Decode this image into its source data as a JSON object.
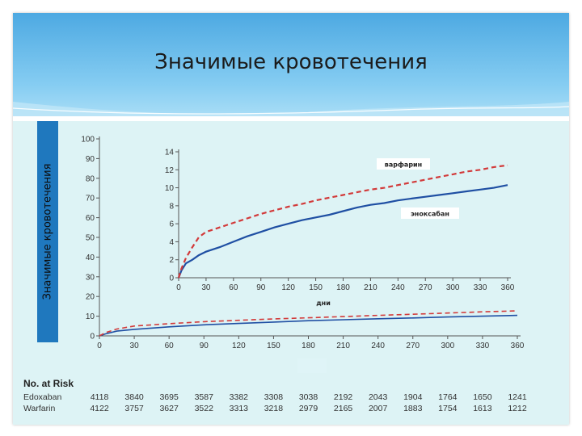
{
  "slide": {
    "title": "Значимые кровотечения",
    "y_axis_label": "Значимые кровотечения"
  },
  "colors": {
    "header_top": "#4da9e2",
    "header_bottom": "#a9ddf6",
    "panel": "#ddf3f5",
    "edoxaban_line": "#1f4fa3",
    "warfarin_line": "#d23a3a"
  },
  "chart_data": [
    {
      "type": "line",
      "role": "main",
      "x_ticks": [
        0,
        30,
        60,
        90,
        120,
        150,
        180,
        210,
        240,
        270,
        300,
        330,
        360
      ],
      "y_ticks": [
        0,
        10,
        20,
        30,
        40,
        50,
        60,
        70,
        80,
        90,
        100
      ],
      "xlim": [
        0,
        360
      ],
      "ylim": [
        0,
        100
      ],
      "ylabel": "Значимые кровотечения",
      "series": [
        {
          "style": "solid",
          "color": "#1f4fa3",
          "x": [
            0,
            5,
            15,
            30,
            60,
            90,
            120,
            150,
            180,
            210,
            240,
            270,
            300,
            330,
            360
          ],
          "y": [
            0,
            1.0,
            2.4,
            3.3,
            4.6,
            5.6,
            6.3,
            7.0,
            7.7,
            8.2,
            8.7,
            9.1,
            9.6,
            10.0,
            10.4
          ]
        },
        {
          "style": "dashed",
          "color": "#d23a3a",
          "x": [
            0,
            5,
            15,
            30,
            60,
            90,
            120,
            150,
            180,
            210,
            240,
            270,
            300,
            330,
            360
          ],
          "y": [
            0,
            1.6,
            3.5,
            5.0,
            6.2,
            7.2,
            7.9,
            8.6,
            9.2,
            9.8,
            10.4,
            11.0,
            11.6,
            12.2,
            12.7
          ]
        }
      ]
    },
    {
      "type": "line",
      "role": "inset",
      "x_ticks": [
        0,
        30,
        60,
        90,
        120,
        150,
        180,
        210,
        240,
        270,
        300,
        330,
        360
      ],
      "y_ticks": [
        0,
        2,
        4,
        6,
        8,
        10,
        12,
        14
      ],
      "xlim": [
        0,
        360
      ],
      "ylim": [
        0,
        14
      ],
      "xlabel": "дни",
      "annotations": [
        "варфарин",
        "эноксабан"
      ],
      "series": [
        {
          "name": "эноксабан",
          "style": "solid",
          "color": "#1f4fa3",
          "x": [
            0,
            3,
            8,
            15,
            22,
            30,
            45,
            60,
            75,
            90,
            105,
            120,
            135,
            150,
            165,
            180,
            195,
            210,
            225,
            240,
            255,
            270,
            285,
            300,
            315,
            330,
            345,
            360
          ],
          "y": [
            0,
            0.8,
            1.6,
            2.0,
            2.5,
            2.9,
            3.4,
            4.0,
            4.6,
            5.1,
            5.6,
            6.0,
            6.4,
            6.7,
            7.0,
            7.4,
            7.8,
            8.1,
            8.3,
            8.6,
            8.8,
            9.0,
            9.2,
            9.4,
            9.6,
            9.8,
            10.0,
            10.3
          ]
        },
        {
          "name": "варфарин",
          "style": "dashed",
          "color": "#d23a3a",
          "x": [
            0,
            3,
            8,
            15,
            22,
            30,
            45,
            60,
            75,
            90,
            105,
            120,
            135,
            150,
            165,
            180,
            195,
            210,
            225,
            240,
            255,
            270,
            285,
            300,
            315,
            330,
            345,
            360
          ],
          "y": [
            0,
            1.0,
            2.2,
            3.4,
            4.5,
            5.1,
            5.6,
            6.1,
            6.6,
            7.1,
            7.5,
            7.9,
            8.2,
            8.6,
            8.9,
            9.2,
            9.5,
            9.8,
            10.0,
            10.3,
            10.6,
            10.9,
            11.2,
            11.5,
            11.8,
            12.0,
            12.3,
            12.5
          ]
        }
      ]
    }
  ],
  "risk_table": {
    "title": "No. at Risk",
    "rows": [
      {
        "label": "Edoxaban",
        "values": [
          "4118",
          "3840",
          "3695",
          "3587",
          "3382",
          "3308",
          "3038",
          "2192",
          "2043",
          "1904",
          "1764",
          "1650",
          "1241"
        ]
      },
      {
        "label": "Warfarin",
        "values": [
          "4122",
          "3757",
          "3627",
          "3522",
          "3313",
          "3218",
          "2979",
          "2165",
          "2007",
          "1883",
          "1754",
          "1613",
          "1212"
        ]
      }
    ]
  }
}
